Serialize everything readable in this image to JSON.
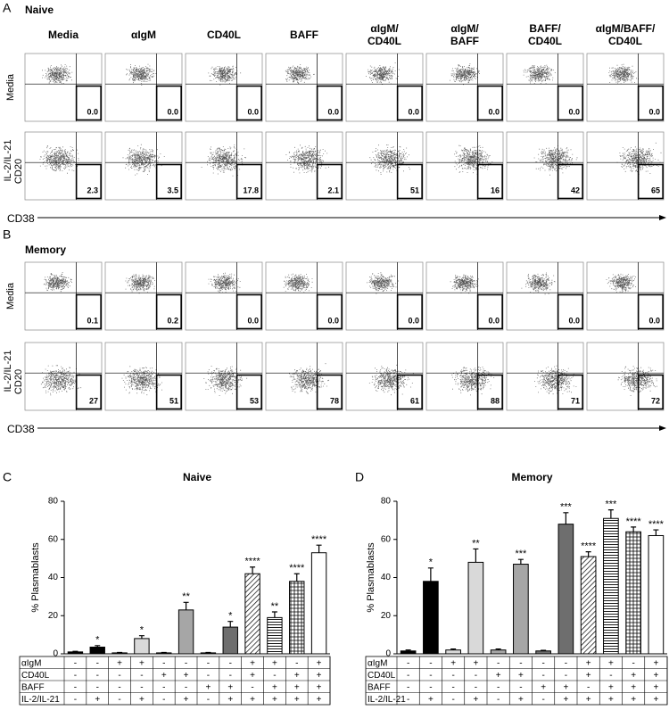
{
  "figure": {
    "conditions": [
      [
        "Media"
      ],
      [
        "αIgM"
      ],
      [
        "CD40L"
      ],
      [
        "BAFF"
      ],
      [
        "αIgM/",
        "CD40L"
      ],
      [
        "αIgM/",
        "BAFF"
      ],
      [
        "BAFF/",
        "CD40L"
      ],
      [
        "αIgM/BAFF/",
        "CD40L"
      ]
    ],
    "row_labels": [
      "Media",
      "IL-2/IL-21"
    ],
    "y_axis": "CD20",
    "x_axis": "CD38",
    "panels": [
      {
        "letter": "A",
        "title": "Naive",
        "gates": [
          [
            "0.0",
            "0.0",
            "0.0",
            "0.0",
            "0.0",
            "0.0",
            "0.0",
            "0.0"
          ],
          [
            "2.3",
            "3.5",
            "17.8",
            "2.1",
            "51",
            "16",
            "42",
            "65"
          ]
        ]
      },
      {
        "letter": "B",
        "title": "Memory",
        "gates": [
          [
            "0.1",
            "0.2",
            "0.0",
            "0.0",
            "0.0",
            "0.0",
            "0.0",
            "0.0"
          ],
          [
            "27",
            "51",
            "53",
            "78",
            "61",
            "88",
            "71",
            "72"
          ]
        ]
      }
    ]
  },
  "chart_data": [
    {
      "type": "bar",
      "letter": "C",
      "title": "Naive",
      "y_label": "% Plasmablasts",
      "ylim": [
        0,
        80
      ],
      "yticks": [
        0,
        20,
        40,
        60,
        80
      ],
      "values": [
        1,
        3.5,
        0.5,
        8,
        0.5,
        23,
        0.5,
        14,
        42,
        19,
        38,
        53
      ],
      "errors": [
        0.3,
        0.8,
        0.2,
        1.5,
        0.2,
        4,
        0.2,
        3,
        3.5,
        3,
        4,
        4
      ],
      "significance": [
        null,
        "*",
        null,
        "*",
        null,
        "**",
        null,
        "*",
        "****",
        "**",
        "****",
        "****"
      ],
      "colors": [
        "#000000",
        "#000000",
        "#d9d9d9",
        "#d9d9d9",
        "#a6a6a6",
        "#a6a6a6",
        "#6e6e6e",
        "#6e6e6e",
        "hatch-diagonal",
        "hatch-horizontal",
        "hatch-grid",
        "#ffffff"
      ],
      "table": {
        "rows": [
          {
            "label": "αIgM",
            "marks": [
              "-",
              "-",
              "+",
              "+",
              "-",
              "-",
              "-",
              "-",
              "+",
              "+",
              "-",
              "+"
            ]
          },
          {
            "label": "CD40L",
            "marks": [
              "-",
              "-",
              "-",
              "-",
              "+",
              "+",
              "-",
              "-",
              "+",
              "-",
              "+",
              "+"
            ]
          },
          {
            "label": "BAFF",
            "marks": [
              "-",
              "-",
              "-",
              "-",
              "-",
              "-",
              "+",
              "+",
              "-",
              "+",
              "+",
              "+"
            ]
          },
          {
            "label": "IL-2/IL-21",
            "marks": [
              "-",
              "+",
              "-",
              "+",
              "-",
              "+",
              "-",
              "+",
              "+",
              "+",
              "+",
              "+"
            ]
          }
        ]
      }
    },
    {
      "type": "bar",
      "letter": "D",
      "title": "Memory",
      "y_label": "% Plasmablasts",
      "ylim": [
        0,
        80
      ],
      "yticks": [
        0,
        20,
        40,
        60,
        80
      ],
      "values": [
        1.5,
        38,
        2,
        48,
        2,
        47,
        1.5,
        68,
        51,
        71,
        64,
        62
      ],
      "errors": [
        0.5,
        7,
        0.5,
        7,
        0.5,
        2.5,
        0.3,
        6,
        2.5,
        4.5,
        2.5,
        3
      ],
      "significance": [
        null,
        "*",
        null,
        "**",
        null,
        "***",
        null,
        "***",
        "****",
        "***",
        "****",
        "****"
      ],
      "colors": [
        "#000000",
        "#000000",
        "#d9d9d9",
        "#d9d9d9",
        "#a6a6a6",
        "#a6a6a6",
        "#6e6e6e",
        "#6e6e6e",
        "hatch-diagonal",
        "hatch-horizontal",
        "hatch-grid",
        "#ffffff"
      ],
      "table": {
        "rows": [
          {
            "label": "αIgM",
            "marks": [
              "-",
              "-",
              "+",
              "+",
              "-",
              "-",
              "-",
              "-",
              "+",
              "+",
              "-",
              "+"
            ]
          },
          {
            "label": "CD40L",
            "marks": [
              "-",
              "-",
              "-",
              "-",
              "+",
              "+",
              "-",
              "-",
              "+",
              "-",
              "+",
              "+"
            ]
          },
          {
            "label": "BAFF",
            "marks": [
              "-",
              "-",
              "-",
              "-",
              "-",
              "-",
              "+",
              "+",
              "-",
              "+",
              "+",
              "+"
            ]
          },
          {
            "label": "IL-2/IL-21",
            "marks": [
              "-",
              "+",
              "-",
              "+",
              "-",
              "+",
              "-",
              "+",
              "+",
              "+",
              "+",
              "+"
            ]
          }
        ]
      }
    }
  ]
}
